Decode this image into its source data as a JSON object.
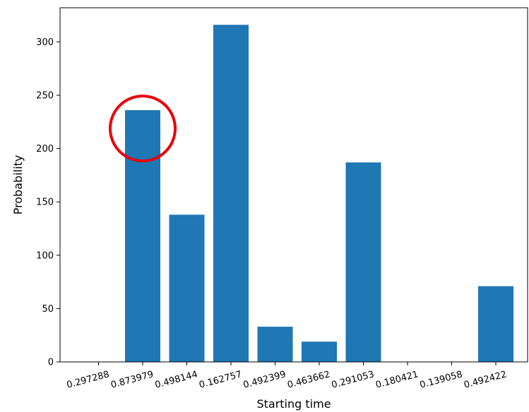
{
  "chart_data": {
    "type": "bar",
    "title": "",
    "xlabel": "Starting time",
    "ylabel": "Probability",
    "categories": [
      "0.297288",
      "0.873979",
      "0.498144",
      "0.162757",
      "0.492399",
      "0.463662",
      "0.291053",
      "0.180421",
      "0.139058",
      "0.492422"
    ],
    "values": [
      0,
      236,
      138,
      316,
      33,
      19,
      187,
      0,
      0,
      71
    ],
    "ylim": [
      0,
      332
    ],
    "yticks": [
      "0",
      "50",
      "100",
      "150",
      "200",
      "250",
      "300"
    ],
    "bar_color": "#1f77b4",
    "grid": false,
    "legend": "none",
    "annotations": [
      {
        "type": "circle",
        "category": "0.873979",
        "color": "#e8000b"
      }
    ]
  }
}
